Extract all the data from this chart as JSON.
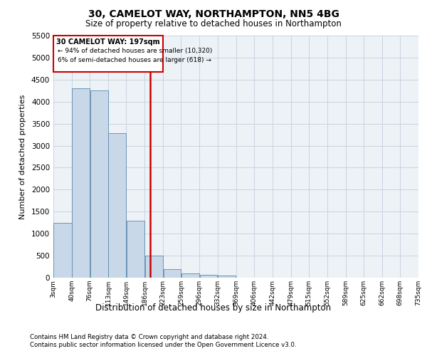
{
  "title_line1": "30, CAMELOT WAY, NORTHAMPTON, NN5 4BG",
  "title_line2": "Size of property relative to detached houses in Northampton",
  "xlabel": "Distribution of detached houses by size in Northampton",
  "ylabel": "Number of detached properties",
  "footnote1": "Contains HM Land Registry data © Crown copyright and database right 2024.",
  "footnote2": "Contains public sector information licensed under the Open Government Licence v3.0.",
  "bar_color": "#c8d8e8",
  "bar_edge_color": "#5a8ab0",
  "grid_color": "#c8d4e0",
  "red_line_color": "#cc0000",
  "annotation_box_color": "#cc0000",
  "annotation_text_line1": "30 CAMELOT WAY: 197sqm",
  "annotation_text_line2": "← 94% of detached houses are smaller (10,320)",
  "annotation_text_line3": "6% of semi-detached houses are larger (618) →",
  "property_size": 197,
  "bin_edges": [
    3,
    40,
    76,
    113,
    149,
    186,
    223,
    259,
    296,
    332,
    369,
    406,
    442,
    479,
    515,
    552,
    589,
    625,
    662,
    698,
    735
  ],
  "bin_counts": [
    1250,
    4300,
    4250,
    3280,
    1300,
    500,
    200,
    100,
    70,
    55,
    0,
    0,
    0,
    0,
    0,
    0,
    0,
    0,
    0,
    0
  ],
  "ylim": [
    0,
    5500
  ],
  "yticks": [
    0,
    500,
    1000,
    1500,
    2000,
    2500,
    3000,
    3500,
    4000,
    4500,
    5000,
    5500
  ],
  "background_color": "#ffffff",
  "plot_bg_color": "#edf2f7"
}
